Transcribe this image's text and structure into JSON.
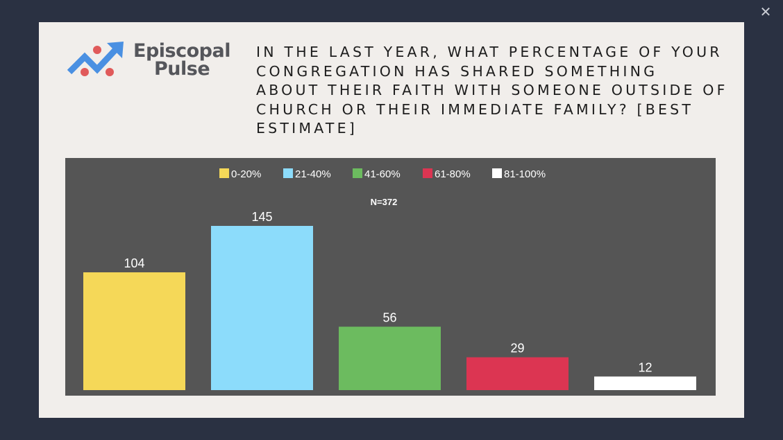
{
  "dialog": {
    "close_icon": "close-icon"
  },
  "logo": {
    "line1": "Episcopal",
    "line2": "Pulse",
    "icon": "trend-arrow-icon",
    "colors": {
      "arrow": "#4a90e2",
      "dots": "#e05a5a",
      "text": "#55565b"
    }
  },
  "question": {
    "text": "In the last year, what percentage of your congregation has shared something about their faith with someone outside of church or their immediate family? [Best estimate]"
  },
  "chart_data": {
    "type": "bar",
    "subtitle": "N=372",
    "categories": [
      "0-20%",
      "21-40%",
      "41-60%",
      "61-80%",
      "81-100%"
    ],
    "values": [
      104,
      145,
      56,
      29,
      12
    ],
    "colors": [
      "#f5d858",
      "#8cdcfb",
      "#6cbb5f",
      "#dc3552",
      "#ffffff"
    ],
    "legend_placement": "top-center",
    "data_labels": true,
    "grid": false,
    "background": "#555555",
    "ylim": [
      0,
      145
    ]
  }
}
